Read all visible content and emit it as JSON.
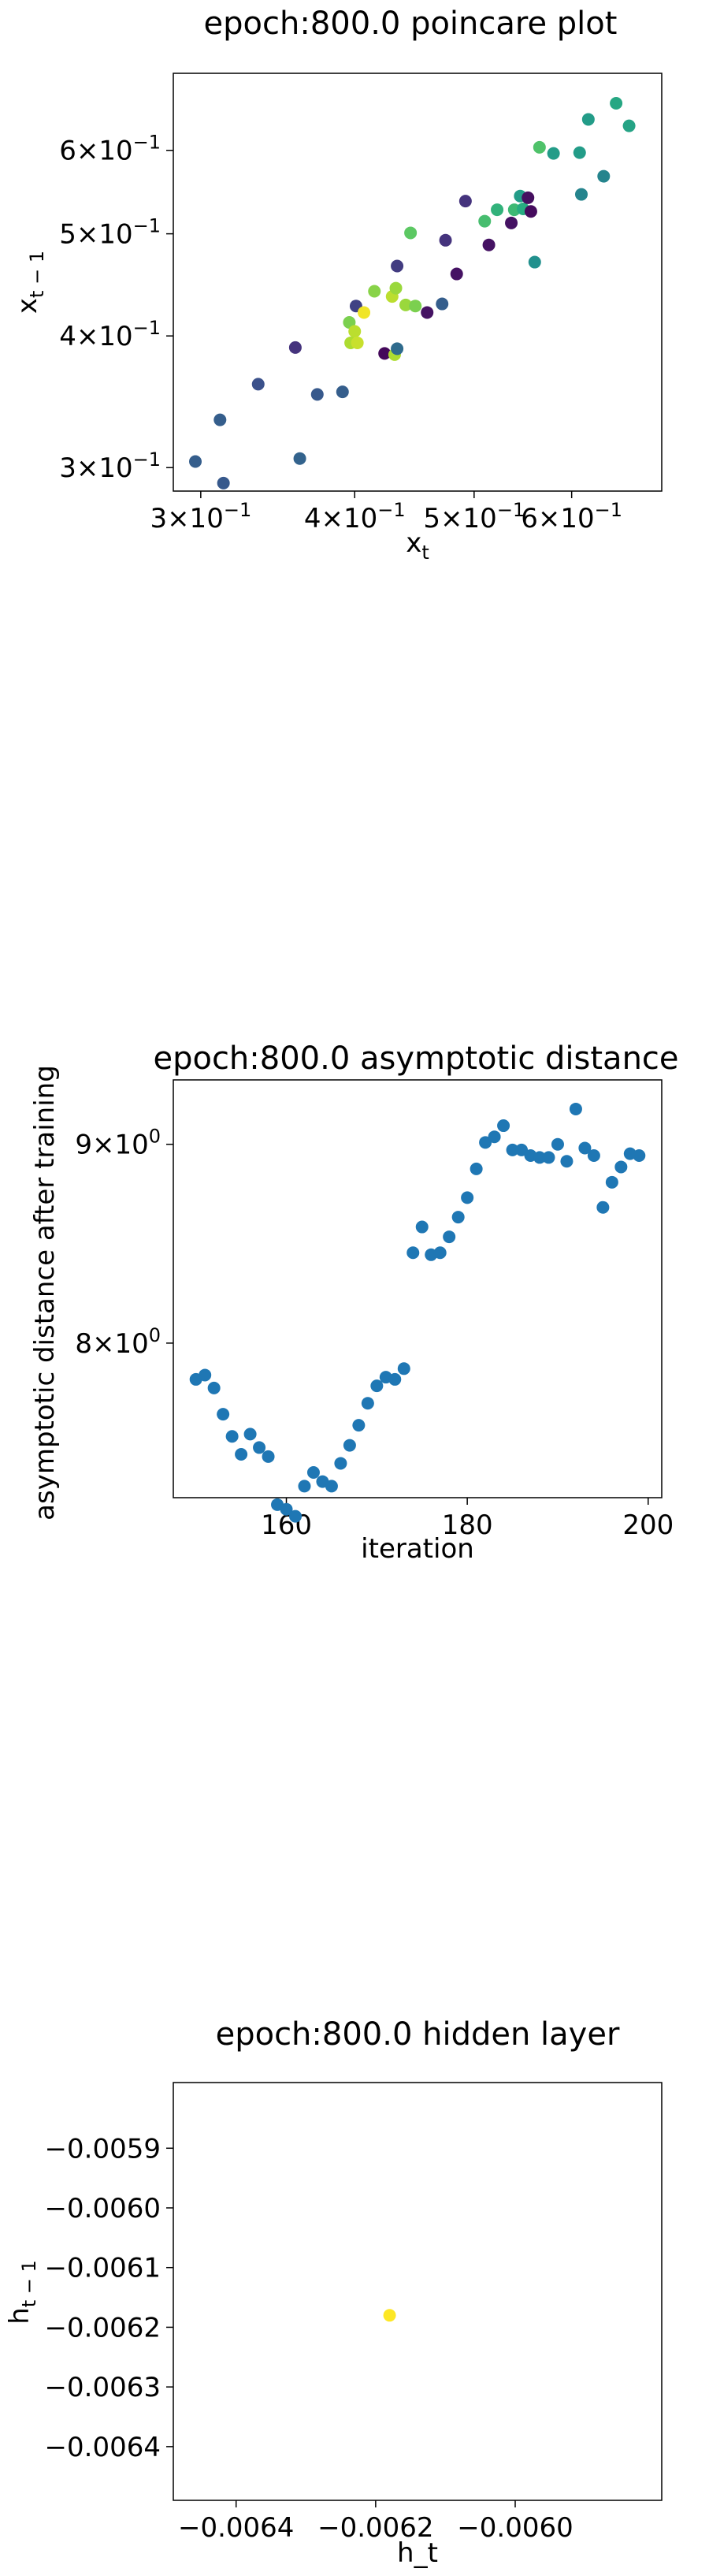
{
  "chart_data": [
    {
      "type": "scatter",
      "title": "epoch:800.0 poincare plot",
      "xlabel": "x_t",
      "ylabel": "x_{t-1}",
      "xscale": "log",
      "yscale": "log",
      "xlim": [
        0.285,
        0.71
      ],
      "ylim": [
        0.285,
        0.71
      ],
      "x_ticks": [
        {
          "value": 0.3,
          "mantissa": "3",
          "base": "10",
          "exp": "−1"
        },
        {
          "value": 0.4,
          "mantissa": "4",
          "base": "10",
          "exp": "−1"
        },
        {
          "value": 0.5,
          "mantissa": "5",
          "base": "10",
          "exp": "−1"
        },
        {
          "value": 0.6,
          "mantissa": "6",
          "base": "10",
          "exp": "−1"
        }
      ],
      "y_ticks": [
        {
          "value": 0.3,
          "mantissa": "3",
          "base": "10",
          "exp": "−1"
        },
        {
          "value": 0.4,
          "mantissa": "4",
          "base": "10",
          "exp": "−1"
        },
        {
          "value": 0.5,
          "mantissa": "5",
          "base": "10",
          "exp": "−1"
        },
        {
          "value": 0.6,
          "mantissa": "6",
          "base": "10",
          "exp": "−1"
        }
      ],
      "grid": false,
      "colormap": "viridis",
      "points": [
        {
          "x": 0.297,
          "y": 0.304,
          "c": 0.3
        },
        {
          "x": 0.313,
          "y": 0.29,
          "c": 0.28
        },
        {
          "x": 0.311,
          "y": 0.333,
          "c": 0.3
        },
        {
          "x": 0.334,
          "y": 0.36,
          "c": 0.25
        },
        {
          "x": 0.358,
          "y": 0.39,
          "c": 0.15
        },
        {
          "x": 0.361,
          "y": 0.306,
          "c": 0.32
        },
        {
          "x": 0.373,
          "y": 0.352,
          "c": 0.28
        },
        {
          "x": 0.391,
          "y": 0.354,
          "c": 0.3
        },
        {
          "x": 0.396,
          "y": 0.412,
          "c": 0.8
        },
        {
          "x": 0.4,
          "y": 0.404,
          "c": 0.9
        },
        {
          "x": 0.397,
          "y": 0.394,
          "c": 0.88
        },
        {
          "x": 0.402,
          "y": 0.394,
          "c": 0.92
        },
        {
          "x": 0.401,
          "y": 0.427,
          "c": 0.2
        },
        {
          "x": 0.407,
          "y": 0.421,
          "c": 0.98
        },
        {
          "x": 0.415,
          "y": 0.441,
          "c": 0.82
        },
        {
          "x": 0.423,
          "y": 0.385,
          "c": 0.02
        },
        {
          "x": 0.429,
          "y": 0.436,
          "c": 0.9
        },
        {
          "x": 0.432,
          "y": 0.444,
          "c": 0.85
        },
        {
          "x": 0.433,
          "y": 0.466,
          "c": 0.18
        },
        {
          "x": 0.431,
          "y": 0.384,
          "c": 0.88
        },
        {
          "x": 0.433,
          "y": 0.389,
          "c": 0.35
        },
        {
          "x": 0.44,
          "y": 0.428,
          "c": 0.85
        },
        {
          "x": 0.444,
          "y": 0.501,
          "c": 0.75
        },
        {
          "x": 0.448,
          "y": 0.427,
          "c": 0.8
        },
        {
          "x": 0.458,
          "y": 0.421,
          "c": 0.05
        },
        {
          "x": 0.471,
          "y": 0.429,
          "c": 0.3
        },
        {
          "x": 0.474,
          "y": 0.493,
          "c": 0.15
        },
        {
          "x": 0.484,
          "y": 0.458,
          "c": 0.05
        },
        {
          "x": 0.492,
          "y": 0.537,
          "c": 0.15
        },
        {
          "x": 0.51,
          "y": 0.514,
          "c": 0.7
        },
        {
          "x": 0.514,
          "y": 0.488,
          "c": 0.05
        },
        {
          "x": 0.522,
          "y": 0.527,
          "c": 0.65
        },
        {
          "x": 0.536,
          "y": 0.512,
          "c": 0.05
        },
        {
          "x": 0.539,
          "y": 0.527,
          "c": 0.68
        },
        {
          "x": 0.545,
          "y": 0.543,
          "c": 0.55
        },
        {
          "x": 0.548,
          "y": 0.528,
          "c": 0.62
        },
        {
          "x": 0.553,
          "y": 0.541,
          "c": 0.04
        },
        {
          "x": 0.556,
          "y": 0.525,
          "c": 0.03
        },
        {
          "x": 0.56,
          "y": 0.47,
          "c": 0.5
        },
        {
          "x": 0.565,
          "y": 0.604,
          "c": 0.72
        },
        {
          "x": 0.58,
          "y": 0.596,
          "c": 0.55
        },
        {
          "x": 0.609,
          "y": 0.597,
          "c": 0.55
        },
        {
          "x": 0.611,
          "y": 0.545,
          "c": 0.45
        },
        {
          "x": 0.619,
          "y": 0.642,
          "c": 0.55
        },
        {
          "x": 0.637,
          "y": 0.567,
          "c": 0.45
        },
        {
          "x": 0.652,
          "y": 0.665,
          "c": 0.6
        },
        {
          "x": 0.668,
          "y": 0.633,
          "c": 0.58
        }
      ]
    },
    {
      "type": "scatter",
      "title": "epoch:800.0 asymptotic distance",
      "xlabel": "iteration",
      "ylabel": "asymptotic distance after training",
      "xscale": "linear",
      "yscale": "log",
      "xlim": [
        147.5,
        201.5
      ],
      "ylim": [
        7.3,
        9.35
      ],
      "x_ticks": [
        {
          "value": 160,
          "label": "160"
        },
        {
          "value": 180,
          "label": "180"
        },
        {
          "value": 200,
          "label": "200"
        }
      ],
      "y_ticks": [
        {
          "value": 8,
          "mantissa": "8",
          "base": "10",
          "exp": "0"
        },
        {
          "value": 9,
          "mantissa": "9",
          "base": "10",
          "exp": "0"
        }
      ],
      "grid": false,
      "color": "#1f77b4",
      "x": [
        150,
        151,
        152,
        153,
        154,
        155,
        156,
        157,
        158,
        159,
        160,
        161,
        162,
        163,
        164,
        165,
        166,
        167,
        168,
        169,
        170,
        171,
        172,
        173,
        174,
        175,
        176,
        177,
        178,
        179,
        180,
        181,
        182,
        183,
        184,
        185,
        186,
        187,
        188,
        189,
        190,
        191,
        192,
        193,
        194,
        195,
        196,
        197,
        198,
        199
      ],
      "y": [
        7.83,
        7.85,
        7.79,
        7.67,
        7.57,
        7.49,
        7.58,
        7.52,
        7.48,
        7.27,
        7.25,
        7.22,
        7.35,
        7.41,
        7.37,
        7.35,
        7.45,
        7.53,
        7.62,
        7.72,
        7.8,
        7.84,
        7.83,
        7.88,
        8.44,
        8.57,
        8.43,
        8.44,
        8.52,
        8.62,
        8.72,
        8.87,
        9.01,
        9.04,
        9.1,
        8.97,
        8.97,
        8.94,
        8.93,
        8.93,
        9.0,
        8.91,
        9.19,
        8.98,
        8.94,
        8.67,
        8.8,
        8.88,
        8.95,
        8.94
      ]
    },
    {
      "type": "scatter",
      "title": "epoch:800.0 hidden layer",
      "xlabel": "h_t",
      "ylabel": "h_{t-1}",
      "xscale": "linear",
      "yscale": "linear",
      "xlim": [
        -0.00649,
        -0.00579
      ],
      "ylim": [
        -0.00649,
        -0.00579
      ],
      "x_ticks": [
        {
          "value": -0.0064,
          "label": "−0.0064"
        },
        {
          "value": -0.0062,
          "label": "−0.0062"
        },
        {
          "value": -0.006,
          "label": "−0.0060"
        }
      ],
      "y_ticks": [
        {
          "value": -0.0059,
          "label": "−0.0059"
        },
        {
          "value": -0.006,
          "label": "−0.0060"
        },
        {
          "value": -0.0061,
          "label": "−0.0061"
        },
        {
          "value": -0.0062,
          "label": "−0.0062"
        },
        {
          "value": -0.0063,
          "label": "−0.0063"
        },
        {
          "value": -0.0064,
          "label": "−0.0064"
        }
      ],
      "grid": false,
      "color": "#fde725",
      "x": [
        -0.00618
      ],
      "y": [
        -0.00618
      ]
    }
  ]
}
